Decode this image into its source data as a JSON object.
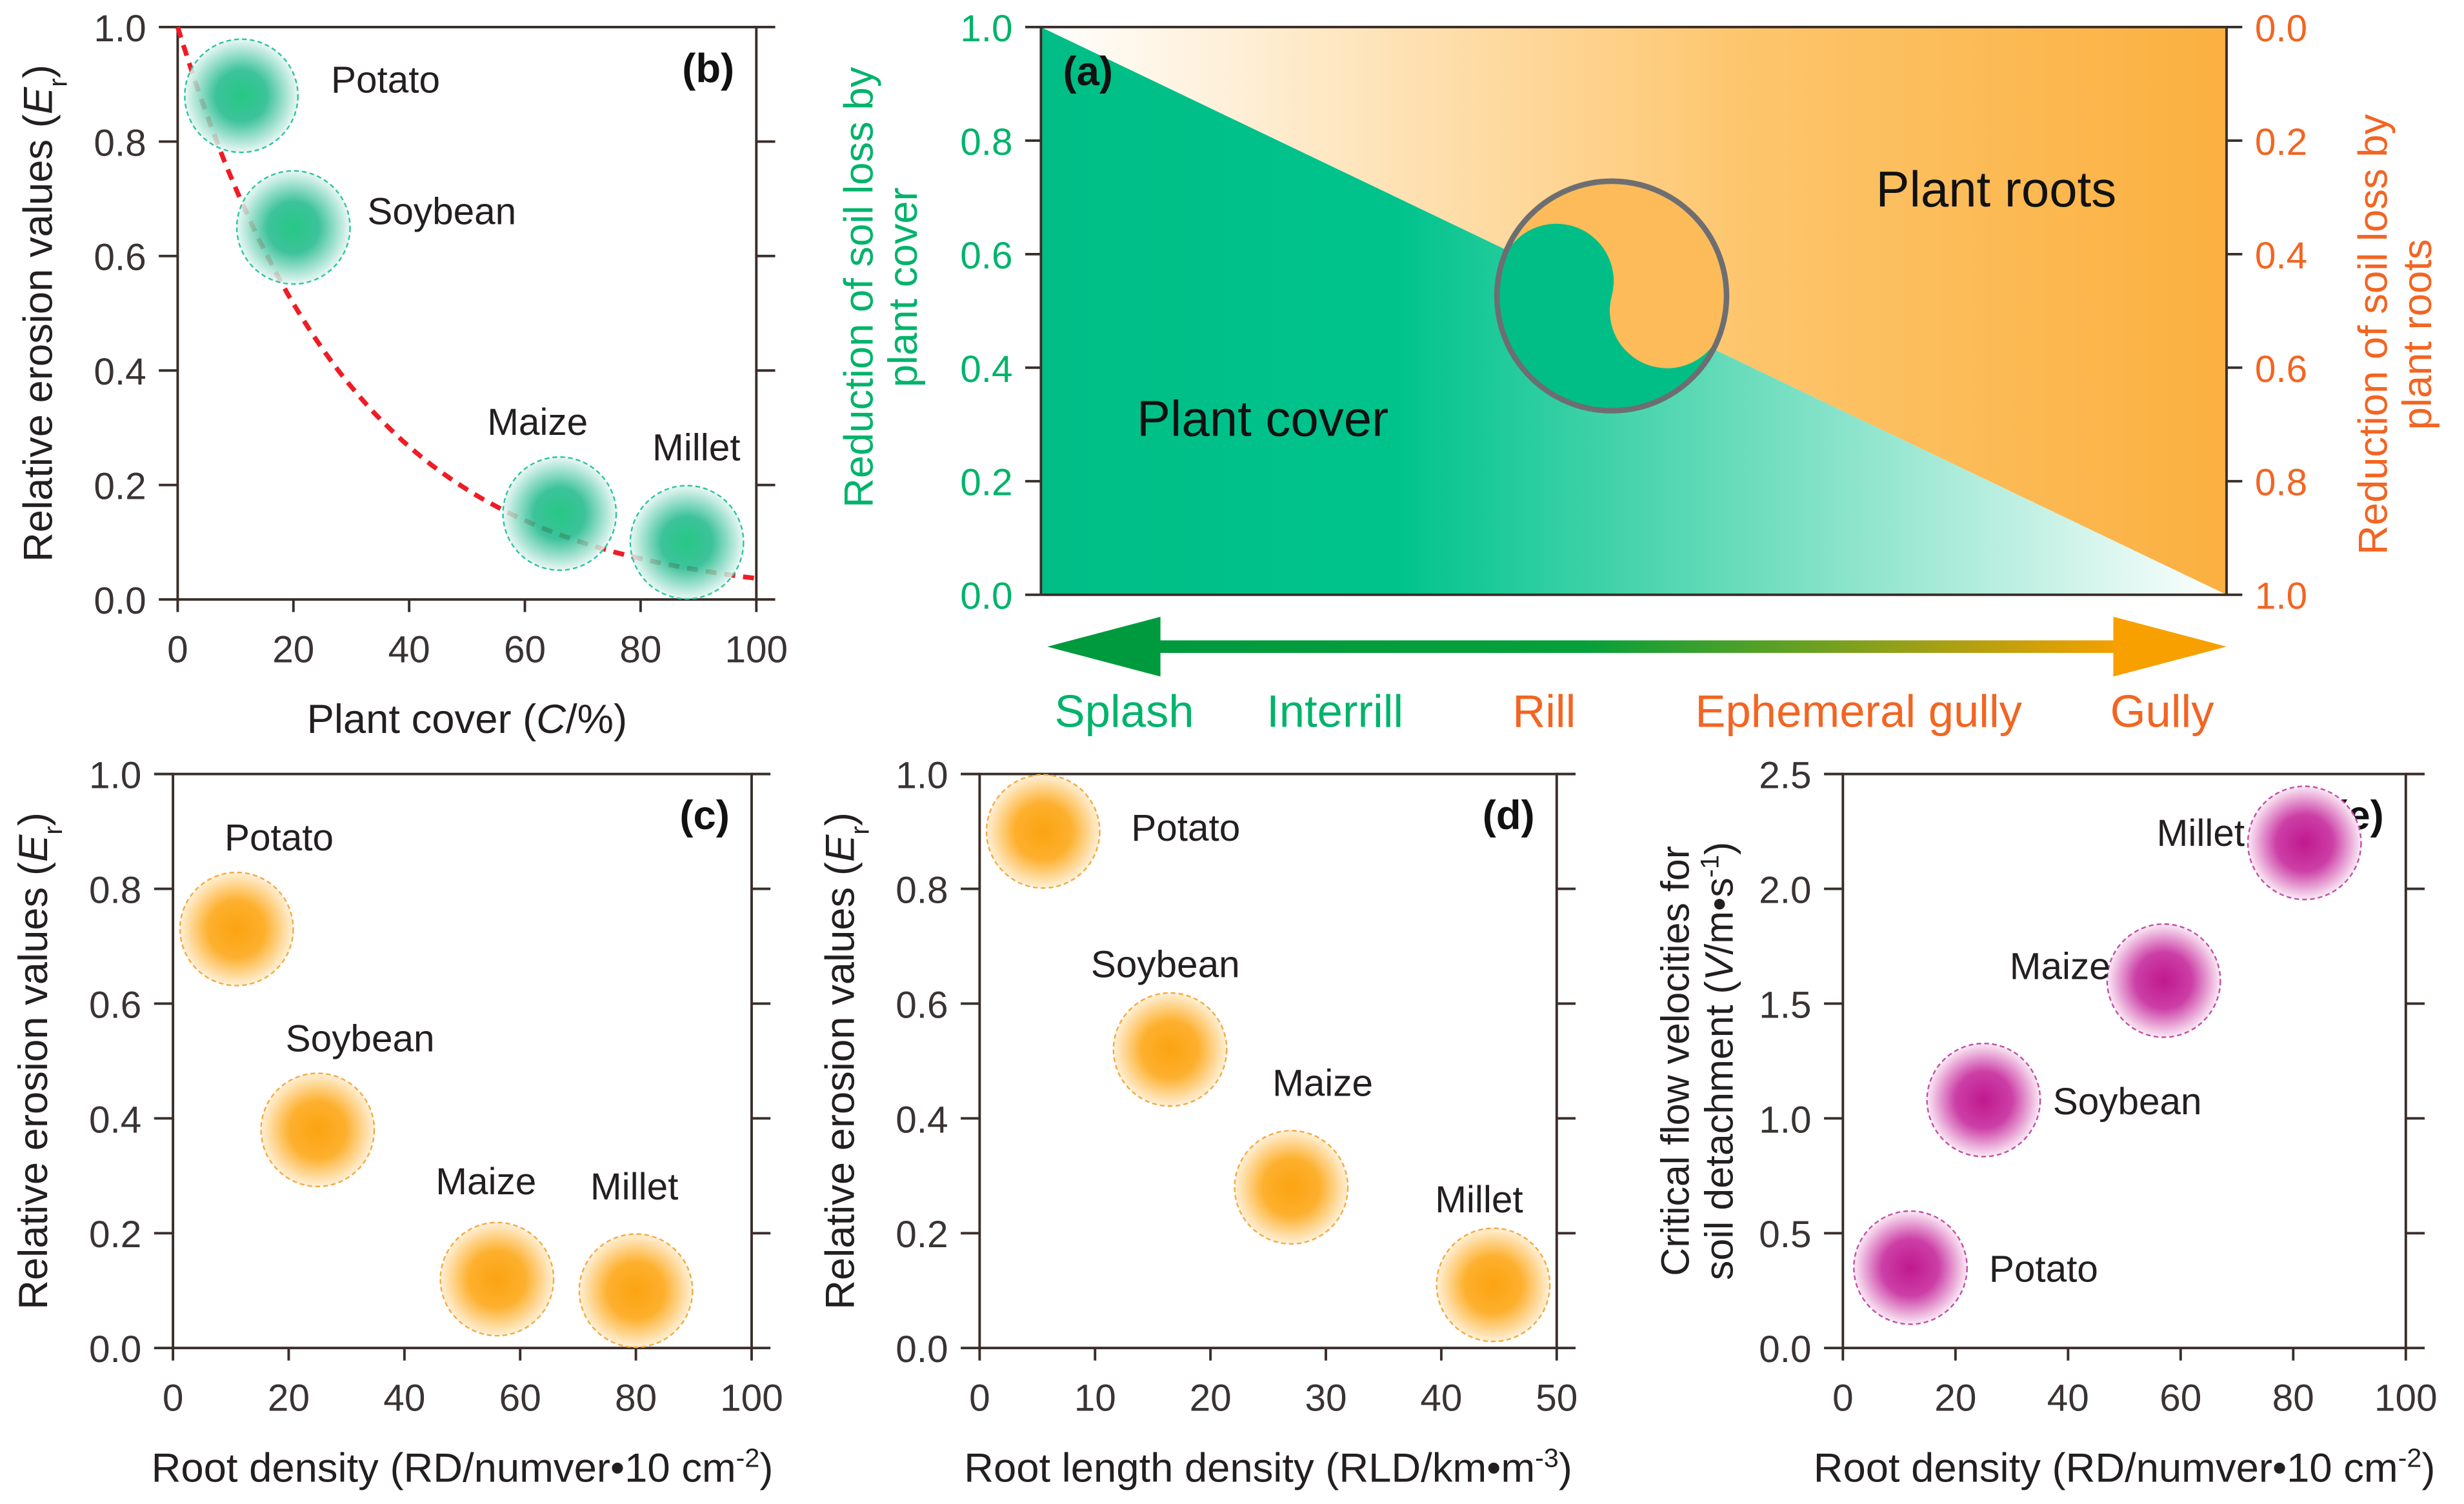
{
  "colors": {
    "green": "#00be86",
    "green_dark": "#009a3e",
    "orange": "#fbb040",
    "orange_text": "#f26522",
    "purple": "#c0289a",
    "axis": "#3a2e2a",
    "curve": "#ee1c25"
  },
  "panel_a": {
    "label": "(a)",
    "left_axis": {
      "lines": [
        "Reduction of soil loss by",
        "plant cover"
      ],
      "ticks": [
        "0.0",
        "0.2",
        "0.4",
        "0.6",
        "0.8",
        "1.0"
      ]
    },
    "right_axis": {
      "lines": [
        "Reduction of soil loss by",
        "plant roots"
      ],
      "ticks": [
        "0.0",
        "0.2",
        "0.4",
        "0.6",
        "0.8",
        "1.0"
      ]
    },
    "region_labels": {
      "cover": "Plant cover",
      "roots": "Plant roots"
    },
    "processes": [
      {
        "label": "Splash",
        "color": "#00b36b"
      },
      {
        "label": "Interrill",
        "color": "#00b36b"
      },
      {
        "label": "Rill",
        "color": "#f26522"
      },
      {
        "label": "Ephemeral gully",
        "color": "#f26522"
      },
      {
        "label": "Gully",
        "color": "#f26522"
      }
    ]
  },
  "chart_data": [
    {
      "id": "b",
      "type": "scatter",
      "panel_label": "(b)",
      "color": "green",
      "xlim": [
        0,
        100
      ],
      "ylim": [
        0,
        1
      ],
      "xticks": [
        0,
        20,
        40,
        60,
        80,
        100
      ],
      "yticks": [
        0.0,
        0.2,
        0.4,
        0.6,
        0.8,
        1.0
      ],
      "xlabel": [
        {
          "t": "Plant cover ("
        },
        {
          "t": "C",
          "s": "i"
        },
        {
          "t": "/%)"
        }
      ],
      "ylabel": [
        {
          "t": "Relative erosion values ("
        },
        {
          "t": "E",
          "s": "i"
        },
        {
          "t": "r",
          "s": "sub"
        },
        {
          "t": ")"
        }
      ],
      "points": [
        {
          "name": "Potato",
          "x": 11,
          "y": 0.88
        },
        {
          "name": "Soybean",
          "x": 20,
          "y": 0.65
        },
        {
          "name": "Maize",
          "x": 66,
          "y": 0.15
        },
        {
          "name": "Millet",
          "x": 88,
          "y": 0.1
        }
      ],
      "fit_curve": {
        "type": "exponential decay",
        "y0": 1.0,
        "k": 0.033,
        "style": "red dashed"
      }
    },
    {
      "id": "c",
      "type": "scatter",
      "panel_label": "(c)",
      "color": "orange",
      "xlim": [
        0,
        100
      ],
      "ylim": [
        0,
        1
      ],
      "xticks": [
        0,
        20,
        40,
        60,
        80,
        100
      ],
      "yticks": [
        0.0,
        0.2,
        0.4,
        0.6,
        0.8,
        1.0
      ],
      "xlabel": [
        {
          "t": "Root density (RD/numver•10 cm"
        },
        {
          "t": "-2",
          "s": "sup"
        },
        {
          "t": ")"
        }
      ],
      "ylabel": [
        {
          "t": "Relative erosion values ("
        },
        {
          "t": "E",
          "s": "i"
        },
        {
          "t": "r",
          "s": "sub"
        },
        {
          "t": ")"
        }
      ],
      "points": [
        {
          "name": "Potato",
          "x": 11,
          "y": 0.73
        },
        {
          "name": "Soybean",
          "x": 25,
          "y": 0.38
        },
        {
          "name": "Maize",
          "x": 56,
          "y": 0.12
        },
        {
          "name": "Millet",
          "x": 80,
          "y": 0.1
        }
      ]
    },
    {
      "id": "d",
      "type": "scatter",
      "panel_label": "(d)",
      "color": "orange",
      "xlim": [
        0,
        50
      ],
      "ylim": [
        0,
        1
      ],
      "xticks": [
        0,
        10,
        20,
        30,
        40,
        50
      ],
      "yticks": [
        0.0,
        0.2,
        0.4,
        0.6,
        0.8,
        1.0
      ],
      "xlabel": [
        {
          "t": "Root length density (RLD/km•m"
        },
        {
          "t": "-3",
          "s": "sup"
        },
        {
          "t": ")"
        }
      ],
      "ylabel": [
        {
          "t": "Relative erosion values ("
        },
        {
          "t": "E",
          "s": "i"
        },
        {
          "t": "r",
          "s": "sub"
        },
        {
          "t": ")"
        }
      ],
      "points": [
        {
          "name": "Potato",
          "x": 5.5,
          "y": 0.9
        },
        {
          "name": "Soybean",
          "x": 16.5,
          "y": 0.52
        },
        {
          "name": "Maize",
          "x": 27,
          "y": 0.28
        },
        {
          "name": "Millet",
          "x": 44.5,
          "y": 0.11
        }
      ]
    },
    {
      "id": "e",
      "type": "scatter",
      "panel_label": "(e)",
      "color": "purple",
      "xlim": [
        0,
        100
      ],
      "ylim": [
        0,
        2.5
      ],
      "xticks": [
        0,
        20,
        40,
        60,
        80,
        100
      ],
      "yticks": [
        0.0,
        0.5,
        1.0,
        1.5,
        2.0,
        2.5
      ],
      "xlabel": [
        {
          "t": "Root density (RD/numver•10 cm"
        },
        {
          "t": "-2",
          "s": "sup"
        },
        {
          "t": ")"
        }
      ],
      "ylabel": [
        {
          "t": "Critical flow velocities for"
        }
      ],
      "ylabel2": [
        {
          "t": "soil detachment ("
        },
        {
          "t": "V",
          "s": "i"
        },
        {
          "t": "/m•s"
        },
        {
          "t": "-1",
          "s": "sup"
        },
        {
          "t": ")"
        }
      ],
      "points": [
        {
          "name": "Potato",
          "x": 12,
          "y": 0.35
        },
        {
          "name": "Soybean",
          "x": 25,
          "y": 1.08
        },
        {
          "name": "Maize",
          "x": 57,
          "y": 1.6
        },
        {
          "name": "Millet",
          "x": 82,
          "y": 2.2
        }
      ]
    }
  ]
}
